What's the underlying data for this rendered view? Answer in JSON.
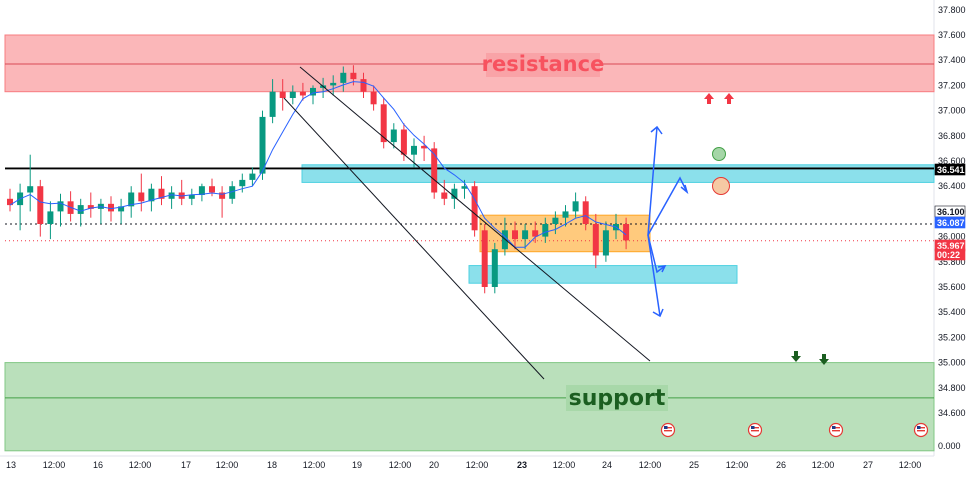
{
  "chart_data": {
    "type": "candlestick",
    "y_axis": {
      "range": [
        34.2,
        37.9
      ],
      "ticks": [
        "37.800",
        "37.600",
        "37.400",
        "37.200",
        "37.000",
        "36.800",
        "36.600",
        "36.400",
        "36.200",
        "36.000",
        "35.800",
        "35.600",
        "35.400",
        "35.200",
        "35.000",
        "34.800",
        "34.600"
      ],
      "tick_values": [
        37.8,
        37.6,
        37.4,
        37.2,
        37.0,
        36.8,
        36.6,
        36.4,
        36.2,
        36.0,
        35.8,
        35.6,
        35.4,
        35.2,
        35.0,
        34.8,
        34.6
      ],
      "bottom_label": "0.000"
    },
    "x_axis": {
      "ticks": [
        "13",
        "12:00",
        "16",
        "12:00",
        "17",
        "12:00",
        "18",
        "12:00",
        "19",
        "12:00",
        "20",
        "12:00",
        "23",
        "12:00",
        "24",
        "12:00",
        "25",
        "12:00",
        "26",
        "12:00",
        "27",
        "12:00"
      ],
      "bold_ticks": [
        "23"
      ]
    },
    "zones": [
      {
        "name": "resistance",
        "from": 37.15,
        "to": 37.6,
        "midline": 37.37,
        "color": "#f77c80"
      },
      {
        "name": "support",
        "from": 34.3,
        "to": 35.0,
        "midline": 34.72,
        "color": "#81c784"
      },
      {
        "name": "upper-cyan",
        "from": 36.43,
        "to": 36.57,
        "color": "#4dd0e1"
      },
      {
        "name": "lower-cyan",
        "from": 35.63,
        "to": 35.77,
        "color": "#4dd0e1"
      },
      {
        "name": "range-box",
        "from": 35.88,
        "to": 36.17,
        "color": "#ffa726"
      }
    ],
    "horizontal_levels": [
      {
        "value": 36.541,
        "label": "36.541",
        "style": "solid-black"
      },
      {
        "value": 36.1,
        "label": "36.100",
        "style": "dotted"
      },
      {
        "value": 35.967,
        "label": "35.967",
        "style": "dotted-red"
      }
    ],
    "price_tags": [
      {
        "value": 36.541,
        "label": "36.541",
        "color": "#000000"
      },
      {
        "value": 36.1,
        "label": "36.100",
        "color": "#ffffff",
        "text_color": "#131722"
      },
      {
        "value": 36.087,
        "label": "36.087",
        "color": "#2962ff"
      },
      {
        "value": 35.967,
        "label": "35.967",
        "color": "#f23645"
      },
      {
        "value": 35.9,
        "label": "00:22",
        "color": "#f23645"
      }
    ],
    "candles": [
      {
        "t": 0,
        "o": 36.3,
        "h": 36.38,
        "l": 36.2,
        "c": 36.25
      },
      {
        "t": 1,
        "o": 36.25,
        "h": 36.42,
        "l": 36.05,
        "c": 36.35
      },
      {
        "t": 2,
        "o": 36.35,
        "h": 36.65,
        "l": 36.2,
        "c": 36.4
      },
      {
        "t": 3,
        "o": 36.4,
        "h": 36.45,
        "l": 36.0,
        "c": 36.1
      },
      {
        "t": 4,
        "o": 36.1,
        "h": 36.28,
        "l": 35.98,
        "c": 36.2
      },
      {
        "t": 5,
        "o": 36.2,
        "h": 36.34,
        "l": 36.08,
        "c": 36.28
      },
      {
        "t": 6,
        "o": 36.28,
        "h": 36.36,
        "l": 36.12,
        "c": 36.18
      },
      {
        "t": 7,
        "o": 36.18,
        "h": 36.3,
        "l": 36.08,
        "c": 36.25
      },
      {
        "t": 8,
        "o": 36.25,
        "h": 36.35,
        "l": 36.15,
        "c": 36.22
      },
      {
        "t": 9,
        "o": 36.22,
        "h": 36.3,
        "l": 36.1,
        "c": 36.26
      },
      {
        "t": 10,
        "o": 36.26,
        "h": 36.32,
        "l": 36.12,
        "c": 36.2
      },
      {
        "t": 11,
        "o": 36.2,
        "h": 36.3,
        "l": 36.1,
        "c": 36.24
      },
      {
        "t": 12,
        "o": 36.24,
        "h": 36.4,
        "l": 36.15,
        "c": 36.35
      },
      {
        "t": 13,
        "o": 36.35,
        "h": 36.5,
        "l": 36.2,
        "c": 36.28
      },
      {
        "t": 14,
        "o": 36.28,
        "h": 36.42,
        "l": 36.2,
        "c": 36.38
      },
      {
        "t": 15,
        "o": 36.38,
        "h": 36.48,
        "l": 36.25,
        "c": 36.3
      },
      {
        "t": 16,
        "o": 36.3,
        "h": 36.4,
        "l": 36.22,
        "c": 36.35
      },
      {
        "t": 17,
        "o": 36.35,
        "h": 36.45,
        "l": 36.25,
        "c": 36.3
      },
      {
        "t": 18,
        "o": 36.3,
        "h": 36.38,
        "l": 36.25,
        "c": 36.33
      },
      {
        "t": 19,
        "o": 36.33,
        "h": 36.42,
        "l": 36.28,
        "c": 36.4
      },
      {
        "t": 20,
        "o": 36.4,
        "h": 36.46,
        "l": 36.32,
        "c": 36.35
      },
      {
        "t": 21,
        "o": 36.35,
        "h": 36.4,
        "l": 36.15,
        "c": 36.3
      },
      {
        "t": 22,
        "o": 36.3,
        "h": 36.44,
        "l": 36.26,
        "c": 36.4
      },
      {
        "t": 23,
        "o": 36.4,
        "h": 36.5,
        "l": 36.35,
        "c": 36.45
      },
      {
        "t": 24,
        "o": 36.45,
        "h": 36.55,
        "l": 36.4,
        "c": 36.5
      },
      {
        "t": 25,
        "o": 36.5,
        "h": 37.0,
        "l": 36.45,
        "c": 36.95
      },
      {
        "t": 26,
        "o": 36.95,
        "h": 37.25,
        "l": 36.9,
        "c": 37.15
      },
      {
        "t": 27,
        "o": 37.15,
        "h": 37.25,
        "l": 37.0,
        "c": 37.1
      },
      {
        "t": 28,
        "o": 37.1,
        "h": 37.2,
        "l": 37.05,
        "c": 37.15
      },
      {
        "t": 29,
        "o": 37.15,
        "h": 37.22,
        "l": 37.08,
        "c": 37.12
      },
      {
        "t": 30,
        "o": 37.12,
        "h": 37.2,
        "l": 37.05,
        "c": 37.18
      },
      {
        "t": 31,
        "o": 37.18,
        "h": 37.26,
        "l": 37.1,
        "c": 37.2
      },
      {
        "t": 32,
        "o": 37.2,
        "h": 37.28,
        "l": 37.12,
        "c": 37.22
      },
      {
        "t": 33,
        "o": 37.22,
        "h": 37.35,
        "l": 37.15,
        "c": 37.3
      },
      {
        "t": 34,
        "o": 37.3,
        "h": 37.36,
        "l": 37.2,
        "c": 37.25
      },
      {
        "t": 35,
        "o": 37.25,
        "h": 37.3,
        "l": 37.1,
        "c": 37.15
      },
      {
        "t": 36,
        "o": 37.15,
        "h": 37.2,
        "l": 37.0,
        "c": 37.05
      },
      {
        "t": 37,
        "o": 37.05,
        "h": 37.1,
        "l": 36.7,
        "c": 36.75
      },
      {
        "t": 38,
        "o": 36.75,
        "h": 36.9,
        "l": 36.7,
        "c": 36.85
      },
      {
        "t": 39,
        "o": 36.85,
        "h": 36.9,
        "l": 36.6,
        "c": 36.65
      },
      {
        "t": 40,
        "o": 36.65,
        "h": 36.78,
        "l": 36.55,
        "c": 36.72
      },
      {
        "t": 41,
        "o": 36.72,
        "h": 36.8,
        "l": 36.6,
        "c": 36.7
      },
      {
        "t": 42,
        "o": 36.7,
        "h": 36.75,
        "l": 36.3,
        "c": 36.35
      },
      {
        "t": 43,
        "o": 36.35,
        "h": 36.45,
        "l": 36.25,
        "c": 36.3
      },
      {
        "t": 44,
        "o": 36.3,
        "h": 36.42,
        "l": 36.22,
        "c": 36.38
      },
      {
        "t": 45,
        "o": 36.38,
        "h": 36.45,
        "l": 36.3,
        "c": 36.4
      },
      {
        "t": 46,
        "o": 36.4,
        "h": 36.44,
        "l": 36.0,
        "c": 36.05
      },
      {
        "t": 47,
        "o": 36.05,
        "h": 36.1,
        "l": 35.55,
        "c": 35.6
      },
      {
        "t": 48,
        "o": 35.6,
        "h": 35.95,
        "l": 35.55,
        "c": 35.9
      },
      {
        "t": 49,
        "o": 35.9,
        "h": 36.15,
        "l": 35.85,
        "c": 36.05
      },
      {
        "t": 50,
        "o": 36.05,
        "h": 36.12,
        "l": 35.9,
        "c": 35.98
      },
      {
        "t": 51,
        "o": 35.98,
        "h": 36.1,
        "l": 35.9,
        "c": 36.05
      },
      {
        "t": 52,
        "o": 36.05,
        "h": 36.12,
        "l": 35.95,
        "c": 36.0
      },
      {
        "t": 53,
        "o": 36.0,
        "h": 36.15,
        "l": 35.95,
        "c": 36.1
      },
      {
        "t": 54,
        "o": 36.1,
        "h": 36.2,
        "l": 36.02,
        "c": 36.15
      },
      {
        "t": 55,
        "o": 36.15,
        "h": 36.25,
        "l": 36.08,
        "c": 36.2
      },
      {
        "t": 56,
        "o": 36.2,
        "h": 36.35,
        "l": 36.15,
        "c": 36.28
      },
      {
        "t": 57,
        "o": 36.28,
        "h": 36.32,
        "l": 36.05,
        "c": 36.1
      },
      {
        "t": 58,
        "o": 36.1,
        "h": 36.18,
        "l": 35.75,
        "c": 35.85
      },
      {
        "t": 59,
        "o": 35.85,
        "h": 36.12,
        "l": 35.8,
        "c": 36.05
      },
      {
        "t": 60,
        "o": 36.05,
        "h": 36.18,
        "l": 35.98,
        "c": 36.1
      },
      {
        "t": 61,
        "o": 36.1,
        "h": 36.15,
        "l": 35.9,
        "c": 35.97
      }
    ],
    "annotations": {
      "zone_labels": [
        "resistance",
        "support"
      ],
      "markers": [
        "red-up-arrow",
        "red-up-arrow",
        "green-down-arrow",
        "green-down-arrow",
        "green-circle",
        "red-circle"
      ],
      "event_flags": [
        "us-flag",
        "us-flag",
        "us-flag",
        "us-flag"
      ]
    },
    "colors": {
      "up": "#089981",
      "down": "#f23645",
      "ma": "#2962ff",
      "projection": "#2962ff",
      "channel": "#131722"
    }
  }
}
